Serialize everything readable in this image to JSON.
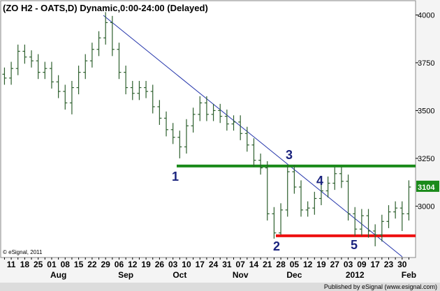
{
  "chart_data": {
    "type": "ohlc",
    "title": "(ZO H2 - OATS,D) Dynamic,0:00-24:00 (Delayed)",
    "copyright": "© eSignal, 2011",
    "footer": "Published by eSignal (www.esignal.com)",
    "color": "#2d5f2d",
    "categories": [
      null,
      "11",
      null,
      "18",
      null,
      "25",
      null,
      "01",
      null,
      "08",
      null,
      "15",
      null,
      "22",
      null,
      "29",
      null,
      "06",
      null,
      "12",
      null,
      "19",
      null,
      "26",
      null,
      "03",
      null,
      "10",
      null,
      "17",
      null,
      "24",
      null,
      "31",
      null,
      "07",
      null,
      "14",
      null,
      "21",
      null,
      "28",
      null,
      "05",
      null,
      "12",
      null,
      "19",
      null,
      "27",
      null,
      "03",
      null,
      "09",
      null,
      "17",
      null,
      "23",
      null,
      "30",
      null
    ],
    "months": [
      null,
      null,
      null,
      null,
      null,
      null,
      null,
      null,
      "Aug",
      null,
      null,
      null,
      null,
      null,
      null,
      null,
      null,
      null,
      "Sep",
      null,
      null,
      null,
      null,
      null,
      null,
      null,
      "Oct",
      null,
      null,
      null,
      null,
      null,
      null,
      null,
      null,
      "Nov",
      null,
      null,
      null,
      null,
      null,
      null,
      null,
      "Dec",
      null,
      null,
      null,
      null,
      null,
      null,
      null,
      null,
      "2012",
      null,
      null,
      null,
      null,
      null,
      null,
      null,
      "Feb"
    ],
    "open": [
      3690,
      3670,
      3720,
      3810,
      3780,
      3760,
      3700,
      3720,
      3650,
      3600,
      3540,
      3620,
      3700,
      3760,
      3820,
      3880,
      3960,
      3820,
      3700,
      3620,
      3590,
      3620,
      3600,
      3520,
      3460,
      3400,
      3360,
      3310,
      3420,
      3480,
      3540,
      3480,
      3500,
      3470,
      3430,
      3440,
      3380,
      3320,
      3240,
      3200,
      2960,
      2860,
      2980,
      3180,
      3100,
      2980,
      2990,
      3040,
      3080,
      3120,
      3170,
      3130,
      2960,
      2880,
      2950,
      2870,
      2850,
      2920,
      2970,
      2990,
      2960
    ],
    "high": [
      3725,
      3755,
      3845,
      3845,
      3815,
      3795,
      3755,
      3755,
      3685,
      3635,
      3655,
      3735,
      3795,
      3855,
      3915,
      4015,
      3995,
      3855,
      3735,
      3655,
      3655,
      3655,
      3635,
      3555,
      3495,
      3435,
      3395,
      3455,
      3515,
      3575,
      3575,
      3535,
      3535,
      3505,
      3475,
      3475,
      3415,
      3355,
      3275,
      3235,
      2995,
      3015,
      3215,
      3215,
      3135,
      3025,
      3075,
      3115,
      3155,
      3205,
      3205,
      3165,
      2995,
      2985,
      2985,
      2905,
      2955,
      3005,
      3025,
      3025,
      3135
    ],
    "low": [
      3635,
      3635,
      3685,
      3745,
      3725,
      3665,
      3665,
      3615,
      3565,
      3505,
      3480,
      3585,
      3665,
      3725,
      3785,
      3845,
      3785,
      3665,
      3585,
      3555,
      3555,
      3565,
      3485,
      3425,
      3365,
      3325,
      3250,
      3275,
      3385,
      3445,
      3445,
      3445,
      3435,
      3395,
      3395,
      3345,
      3285,
      3205,
      3165,
      2925,
      2830,
      2850,
      2945,
      3065,
      2945,
      2945,
      2955,
      3005,
      3045,
      3085,
      3095,
      2925,
      2845,
      2845,
      2835,
      2790,
      2815,
      2885,
      2935,
      2870,
      2925
    ],
    "close": [
      3670,
      3720,
      3810,
      3780,
      3760,
      3700,
      3720,
      3650,
      3600,
      3540,
      3620,
      3700,
      3760,
      3820,
      3880,
      3960,
      3820,
      3700,
      3620,
      3590,
      3620,
      3600,
      3520,
      3460,
      3400,
      3360,
      3310,
      3420,
      3480,
      3540,
      3480,
      3500,
      3470,
      3430,
      3440,
      3380,
      3320,
      3240,
      3200,
      2960,
      2860,
      2980,
      3180,
      3100,
      2980,
      2990,
      3040,
      3080,
      3120,
      3170,
      3130,
      2960,
      2880,
      2950,
      2870,
      2850,
      2920,
      2970,
      2990,
      2960,
      3100
    ],
    "ylim": [
      2735,
      4060
    ],
    "yticks": [
      3000,
      3250,
      3500,
      3750,
      4000
    ],
    "last_price": 3104,
    "levels": [
      {
        "value": 3210,
        "color": "#1a8a1a"
      },
      {
        "value": 2845,
        "color": "#ee1111"
      }
    ],
    "annotations": [
      "1",
      "2",
      "3",
      "4",
      "5"
    ]
  }
}
